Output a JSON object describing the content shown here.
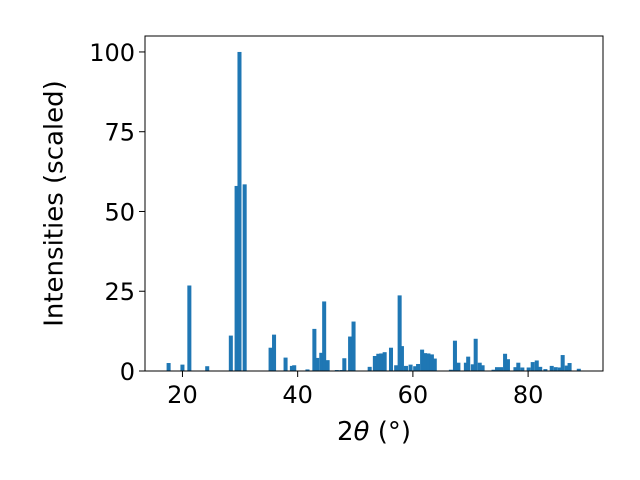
{
  "chart_data": {
    "type": "bar",
    "xlabel_prefix": "2",
    "xlabel_symbol": "θ",
    "xlabel_suffix": " (°)",
    "ylabel": "Intensities (scaled)",
    "xlim": [
      13.5,
      93
    ],
    "ylim": [
      0,
      105
    ],
    "xticks": [
      20,
      40,
      60,
      80
    ],
    "yticks": [
      0,
      25,
      50,
      75,
      100
    ],
    "bar_color": "#1f77b4",
    "bar_width": 0.7,
    "grid": false,
    "x": [
      17.6,
      20.0,
      21.2,
      24.3,
      28.4,
      29.4,
      29.9,
      30.8,
      35.3,
      35.9,
      37.9,
      39.0,
      39.4,
      41.7,
      42.9,
      43.4,
      44.1,
      44.6,
      45.2,
      46.8,
      47.6,
      48.1,
      49.1,
      49.7,
      52.5,
      53.4,
      54.0,
      54.5,
      55.1,
      56.2,
      57.1,
      57.7,
      58.1,
      58.8,
      59.6,
      60.4,
      60.9,
      61.6,
      62.1,
      62.7,
      63.3,
      63.8,
      66.6,
      67.3,
      67.9,
      69.2,
      69.6,
      70.4,
      70.9,
      71.6,
      72.1,
      74.0,
      74.6,
      75.3,
      76.0,
      76.5,
      77.8,
      78.3,
      79.0,
      80.1,
      80.8,
      81.5,
      82.1,
      83.0,
      84.1,
      84.8,
      85.5,
      86.0,
      86.7,
      87.2,
      88.8
    ],
    "values": [
      2.5,
      2.0,
      26.8,
      1.5,
      11.1,
      58.0,
      100.0,
      58.5,
      7.3,
      11.4,
      4.2,
      1.6,
      1.8,
      0.5,
      13.2,
      4.1,
      5.7,
      21.8,
      3.4,
      0.3,
      0.3,
      4.0,
      10.8,
      15.5,
      1.3,
      4.7,
      5.4,
      5.5,
      5.9,
      7.3,
      1.8,
      23.7,
      7.8,
      1.6,
      2.0,
      1.5,
      2.2,
      6.7,
      5.6,
      5.5,
      5.2,
      3.9,
      0.4,
      9.5,
      2.6,
      2.6,
      4.5,
      2.1,
      10.1,
      2.6,
      1.8,
      0.4,
      1.2,
      1.2,
      5.4,
      3.7,
      1.2,
      2.6,
      1.1,
      1.1,
      2.8,
      3.3,
      1.3,
      0.6,
      1.6,
      1.2,
      1.1,
      5.0,
      1.7,
      2.5,
      0.7
    ]
  }
}
